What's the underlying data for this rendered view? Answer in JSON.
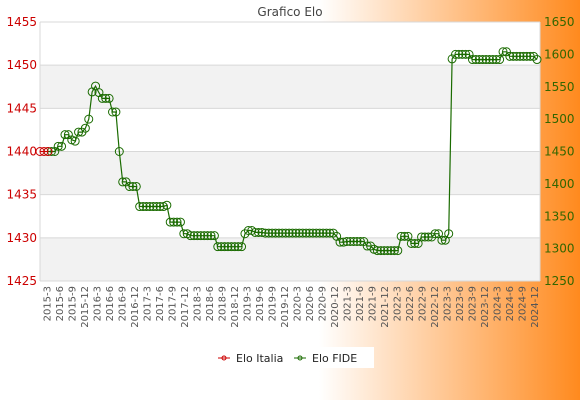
{
  "colors": {
    "bg_left": "#ffffff",
    "bg_right": "#ff8a1e",
    "plot_band": "#f2f2f2",
    "plot_plain": "#ffffff",
    "grid": "#d8d8d8",
    "left_axis_text": "#cc0000",
    "right_axis_text": "#336600",
    "italia": "#cc0000",
    "fide": "#1a6b00",
    "title": "#444444"
  },
  "chart_data": {
    "type": "line",
    "title": "Grafico Elo",
    "x_tick_labels": [
      "2015-3",
      "2015-6",
      "2015-9",
      "2015-12",
      "2016-3",
      "2016-6",
      "2016-9",
      "2016-12",
      "2017-3",
      "2017-6",
      "2017-9",
      "2017-12",
      "2018-3",
      "2018-6",
      "2018-9",
      "2018-12",
      "2019-3",
      "2019-6",
      "2019-9",
      "2019-12",
      "2020-3",
      "2020-6",
      "2020-9",
      "2020-12",
      "2021-3",
      "2021-6",
      "2021-9",
      "2021-12",
      "2022-3",
      "2022-6",
      "2022-9",
      "2022-12",
      "2023-3",
      "2023-6",
      "2023-9",
      "2023-12",
      "2024-3",
      "2024-6",
      "2024-9",
      "2024-12"
    ],
    "y_left": {
      "min": 1425,
      "max": 1455,
      "ticks": [
        1425,
        1430,
        1435,
        1440,
        1445,
        1450,
        1455
      ]
    },
    "y_right": {
      "min": 1250,
      "max": 1650,
      "ticks": [
        1250,
        1300,
        1350,
        1400,
        1450,
        1500,
        1550,
        1600,
        1650
      ]
    },
    "legend_position": "bottom",
    "series": [
      {
        "name": "Elo Italia",
        "axis": "left",
        "color": "#cc0000",
        "values": [
          1440,
          1440,
          1440
        ]
      },
      {
        "name": "Elo FIDE",
        "axis": "right",
        "color": "#1a6b00",
        "values": [
          1450,
          1450,
          1450,
          1458,
          1458,
          1476,
          1476,
          1468,
          1466,
          1480,
          1480,
          1486,
          1500,
          1542,
          1551,
          1541,
          1532,
          1532,
          1532,
          1511,
          1511,
          1450,
          1403,
          1403,
          1396,
          1396,
          1396,
          1365,
          1365,
          1365,
          1365,
          1365,
          1365,
          1365,
          1365,
          1367,
          1341,
          1341,
          1341,
          1341,
          1323,
          1323,
          1320,
          1320,
          1320,
          1320,
          1320,
          1320,
          1320,
          1320,
          1303,
          1303,
          1303,
          1303,
          1303,
          1303,
          1303,
          1303,
          1323,
          1328,
          1328,
          1325,
          1325,
          1325,
          1324,
          1324,
          1324,
          1324,
          1324,
          1324,
          1324,
          1324,
          1324,
          1324,
          1324,
          1324,
          1324,
          1324,
          1324,
          1324,
          1324,
          1324,
          1324,
          1324,
          1324,
          1319,
          1310,
          1310,
          1311,
          1311,
          1311,
          1311,
          1311,
          1311,
          1304,
          1304,
          1299,
          1297,
          1297,
          1297,
          1297,
          1297,
          1297,
          1297,
          1319,
          1319,
          1319,
          1308,
          1308,
          1308,
          1318,
          1318,
          1318,
          1318,
          1323,
          1323,
          1313,
          1313,
          1323,
          1593,
          1600,
          1600,
          1600,
          1600,
          1600,
          1592,
          1592,
          1592,
          1592,
          1592,
          1592,
          1592,
          1592,
          1592,
          1604,
          1604,
          1597,
          1597,
          1597,
          1597,
          1597,
          1597,
          1597,
          1597,
          1592
        ]
      }
    ]
  }
}
